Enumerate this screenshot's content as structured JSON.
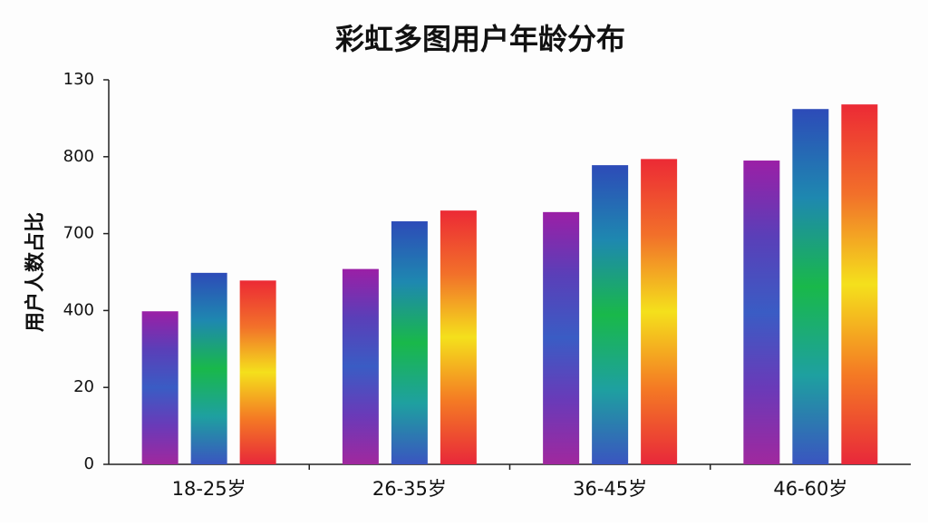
{
  "chart_data": {
    "type": "bar",
    "title": "彩虹多图用户年龄分布",
    "y_label": "用户人数占比",
    "categories": [
      "18-25岁",
      "26-35岁",
      "36-45岁",
      "46-60岁"
    ],
    "series": [
      {
        "gradient": [
          "#9b1fa6",
          "#5a3fb8",
          "#3a5cc4",
          "#6a3ab8",
          "#a0289e"
        ],
        "values": [
          1.99,
          2.54,
          3.28,
          3.95
        ]
      },
      {
        "gradient": [
          "#2d4bb8",
          "#1e88b0",
          "#19b84a",
          "#1ea0a0",
          "#3a55c0"
        ],
        "values": [
          2.49,
          3.16,
          3.89,
          4.62
        ]
      },
      {
        "gradient": [
          "#ec2a35",
          "#f2702a",
          "#f4e01c",
          "#f47a24",
          "#e8283a"
        ],
        "values": [
          2.39,
          3.3,
          3.97,
          4.68
        ]
      }
    ],
    "ylim": [
      0,
      5
    ],
    "yticks": [
      {
        "value": 0,
        "label": "0"
      },
      {
        "value": 1,
        "label": "20"
      },
      {
        "value": 2,
        "label": "400"
      },
      {
        "value": 3,
        "label": "700"
      },
      {
        "value": 4,
        "label": "800"
      },
      {
        "value": 5,
        "label": "130"
      }
    ]
  }
}
